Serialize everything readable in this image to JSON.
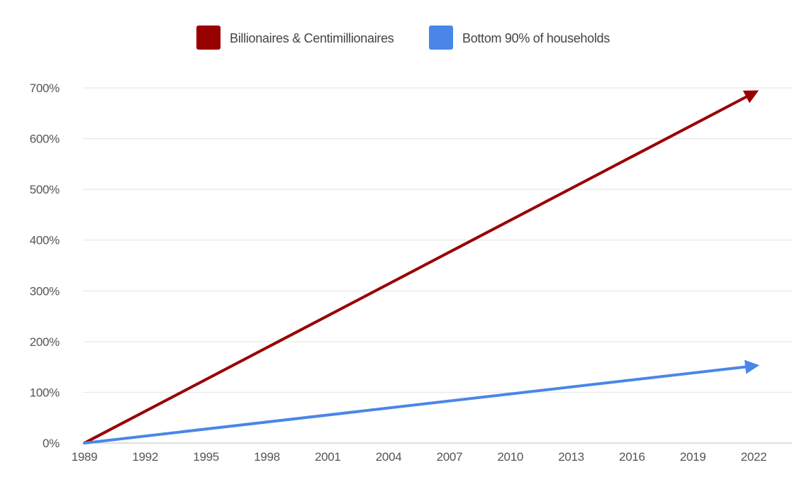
{
  "chart_data": {
    "type": "line",
    "title": "",
    "xlabel": "",
    "ylabel": "",
    "x_ticks": [
      "1989",
      "1992",
      "1995",
      "1998",
      "2001",
      "2004",
      "2007",
      "2010",
      "2013",
      "2016",
      "2019",
      "2022"
    ],
    "y_ticks": [
      "0%",
      "100%",
      "200%",
      "300%",
      "400%",
      "500%",
      "600%",
      "700%"
    ],
    "xlim": [
      1989,
      2022
    ],
    "ylim": [
      0,
      700
    ],
    "grid": true,
    "legend_position": "top-center",
    "series": [
      {
        "name": "Billionaires & Centimillionaires",
        "color": "#990000",
        "style": "arrow",
        "x": [
          1989,
          2022
        ],
        "y": [
          0,
          690
        ]
      },
      {
        "name": "Bottom 90% of households",
        "color": "#4a86e8",
        "style": "arrow",
        "x": [
          1989,
          2022
        ],
        "y": [
          0,
          152
        ]
      }
    ]
  }
}
